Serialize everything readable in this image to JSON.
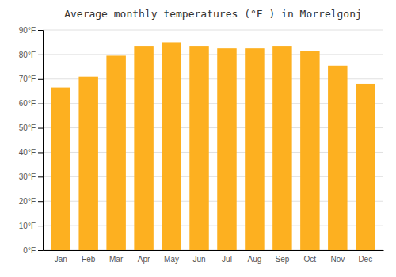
{
  "chart_data": {
    "type": "bar",
    "title": "Average monthly temperatures (°F ) in Morrelgonj",
    "categories": [
      "Jan",
      "Feb",
      "Mar",
      "Apr",
      "May",
      "Jun",
      "Jul",
      "Aug",
      "Sep",
      "Oct",
      "Nov",
      "Dec"
    ],
    "values": [
      66.5,
      71.0,
      79.5,
      83.5,
      85.0,
      83.5,
      82.5,
      82.5,
      83.5,
      81.5,
      75.5,
      68.0
    ],
    "color": "#FDB020",
    "ylim": [
      0,
      90
    ],
    "yticks": [
      {
        "value": 0,
        "label": "0°F"
      },
      {
        "value": 10,
        "label": "10°F"
      },
      {
        "value": 20,
        "label": "20°F"
      },
      {
        "value": 30,
        "label": "30°F"
      },
      {
        "value": 40,
        "label": "40°F"
      },
      {
        "value": 50,
        "label": "50°F"
      },
      {
        "value": 60,
        "label": "60°F"
      },
      {
        "value": 70,
        "label": "70°F"
      },
      {
        "value": 80,
        "label": "80°F"
      },
      {
        "value": 90,
        "label": "90°F"
      }
    ],
    "grid": true
  }
}
